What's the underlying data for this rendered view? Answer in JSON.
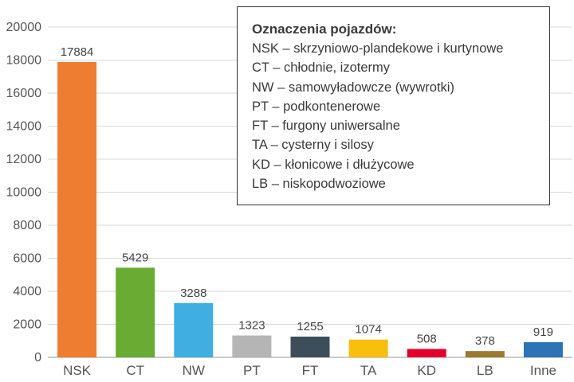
{
  "chart_data": {
    "type": "bar",
    "categories": [
      "NSK",
      "CT",
      "NW",
      "PT",
      "FT",
      "TA",
      "KD",
      "LB",
      "Inne"
    ],
    "values": [
      17884,
      5429,
      3288,
      1323,
      1255,
      1074,
      508,
      378,
      919
    ],
    "data_labels": [
      "17884",
      "5429",
      "3288",
      "1323",
      "1255",
      "1074",
      "508",
      "378",
      "919"
    ],
    "colors": [
      "#ee7d31",
      "#6aab33",
      "#41aee2",
      "#b5b5b5",
      "#3c4e59",
      "#f9bf0f",
      "#e2002b",
      "#9b7a2d",
      "#2d73b8"
    ],
    "ylim": [
      0,
      20000
    ],
    "yticks": [
      0,
      2000,
      4000,
      6000,
      8000,
      10000,
      12000,
      14000,
      16000,
      18000,
      20000
    ],
    "ytick_labels": [
      "0",
      "2000",
      "4000",
      "6000",
      "8000",
      "10000",
      "12000",
      "14000",
      "16000",
      "18000",
      "20000"
    ],
    "grid": true,
    "legend": {
      "placement": "top-right",
      "title": "Oznaczenia pojazdów:",
      "items": [
        "NSK – skrzyniowo-plandekowe i kurtynowe",
        "CT – chłodnie, izotermy",
        "NW – samowyładowcze (wywrotki)",
        "PT – podkontenerowe",
        "FT – furgony uniwersalne",
        "TA – cysterny i silosy",
        "KD – kłonicowe i dłużycowe",
        "LB – niskopodwoziowe"
      ]
    }
  }
}
